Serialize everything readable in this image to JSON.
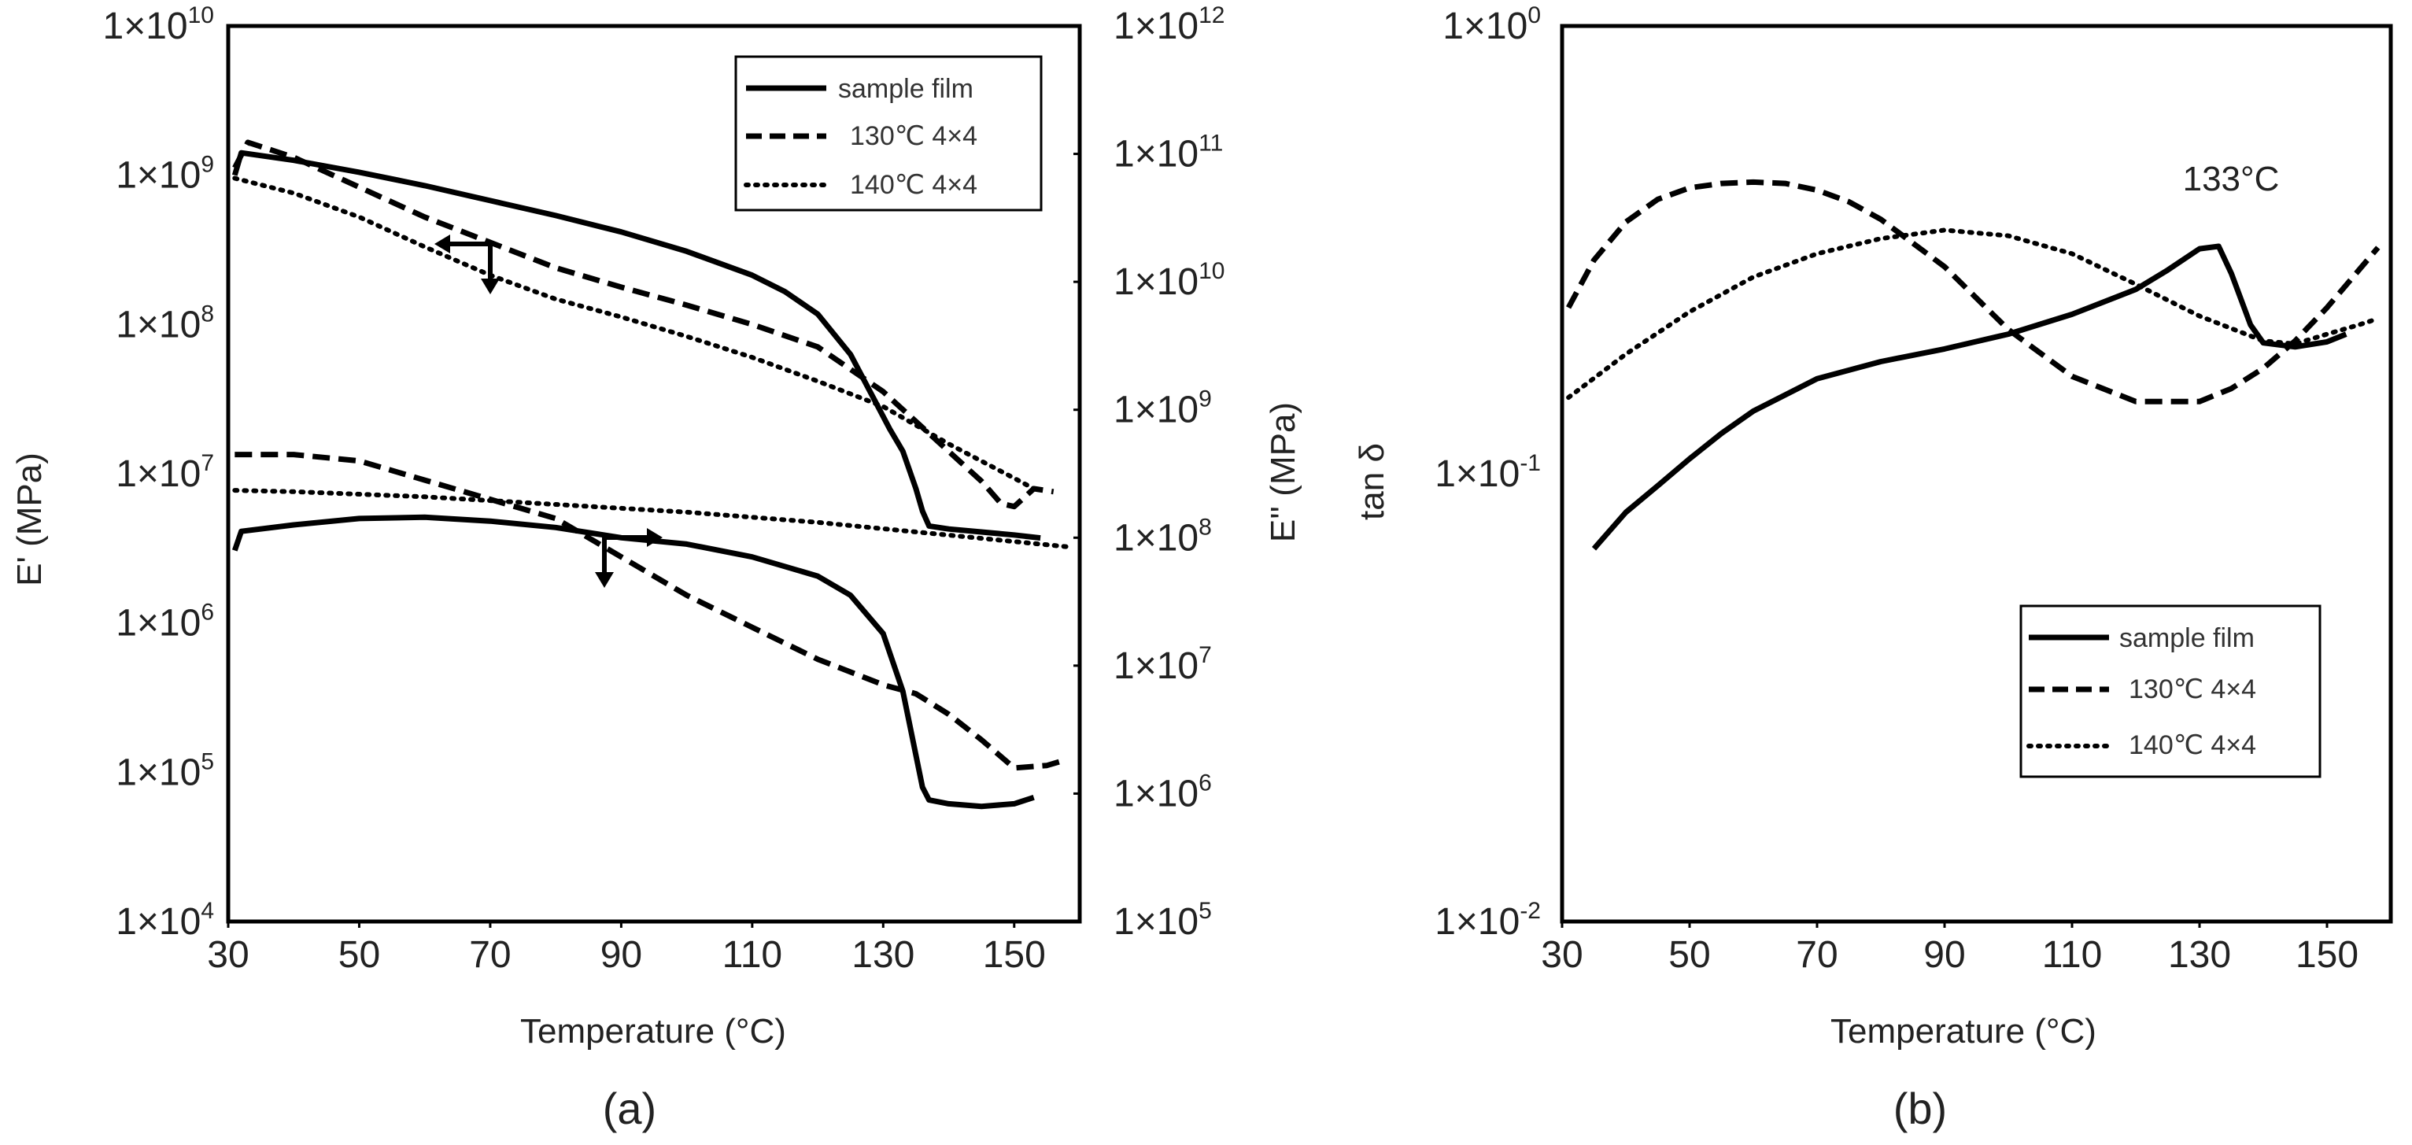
{
  "chart_data": [
    {
      "panel_label": "(a)",
      "type": "line",
      "xlabel": "Temperature (°C)",
      "ylabel_left": "E' (MPa)",
      "ylabel_right": "E'' (MPa)",
      "x_ticks": [
        30,
        50,
        70,
        90,
        110,
        130,
        150
      ],
      "xlim": [
        30,
        160
      ],
      "ylim_left_log10": [
        4,
        10
      ],
      "ylim_right_log10": [
        5,
        12
      ],
      "y_ticks_left": [
        {
          "base": "1×10",
          "exp": "10"
        },
        {
          "base": "1×10",
          "exp": "9"
        },
        {
          "base": "1×10",
          "exp": "8"
        },
        {
          "base": "1×10",
          "exp": "7"
        },
        {
          "base": "1×10",
          "exp": "6"
        },
        {
          "base": "1×10",
          "exp": "5"
        },
        {
          "base": "1×10",
          "exp": "4"
        }
      ],
      "y_ticks_right": [
        {
          "base": "1×10",
          "exp": "12"
        },
        {
          "base": "1×10",
          "exp": "11"
        },
        {
          "base": "1×10",
          "exp": "10"
        },
        {
          "base": "1×10",
          "exp": "9"
        },
        {
          "base": "1×10",
          "exp": "8"
        },
        {
          "base": "1×10",
          "exp": "7"
        },
        {
          "base": "1×10",
          "exp": "6"
        },
        {
          "base": "1×10",
          "exp": "5"
        }
      ],
      "legend": [
        "sample film",
        "130℃ 4×4",
        "140℃ 4×4"
      ],
      "series": [
        {
          "name": "sample film",
          "quantity": "E'",
          "axis": "left",
          "style": "solid",
          "x": [
            31,
            32,
            40,
            50,
            60,
            70,
            80,
            90,
            100,
            110,
            115,
            120,
            125,
            128,
            131,
            133,
            135,
            136,
            137,
            140,
            145,
            150,
            154
          ],
          "log10_y": [
            9.0,
            9.15,
            9.1,
            9.02,
            8.93,
            8.83,
            8.73,
            8.62,
            8.49,
            8.33,
            8.22,
            8.07,
            7.8,
            7.55,
            7.3,
            7.15,
            6.9,
            6.75,
            6.65,
            6.63,
            6.61,
            6.59,
            6.57
          ]
        },
        {
          "name": "130℃ 4×4",
          "quantity": "E'",
          "axis": "left",
          "style": "dashed",
          "x": [
            31,
            33,
            40,
            50,
            60,
            70,
            80,
            90,
            100,
            110,
            120,
            130,
            135,
            140,
            145,
            148,
            150,
            153,
            156
          ],
          "log10_y": [
            9.05,
            9.22,
            9.12,
            8.92,
            8.72,
            8.55,
            8.38,
            8.25,
            8.13,
            8.0,
            7.85,
            7.55,
            7.35,
            7.15,
            6.95,
            6.8,
            6.78,
            6.9,
            6.88
          ]
        },
        {
          "name": "140℃ 4×4",
          "quantity": "E'",
          "axis": "left",
          "style": "dotted",
          "x": [
            31,
            40,
            50,
            60,
            70,
            80,
            90,
            100,
            110,
            120,
            130,
            140,
            150,
            153
          ],
          "log10_y": [
            8.98,
            8.88,
            8.72,
            8.52,
            8.33,
            8.17,
            8.05,
            7.92,
            7.78,
            7.62,
            7.45,
            7.2,
            6.97,
            6.9
          ]
        },
        {
          "name": "sample film",
          "quantity": "E''",
          "axis": "right",
          "style": "solid",
          "x": [
            31,
            32,
            40,
            50,
            60,
            70,
            80,
            90,
            100,
            110,
            120,
            125,
            130,
            133,
            135,
            136,
            137,
            140,
            145,
            150,
            153
          ],
          "log10_y": [
            7.9,
            8.05,
            8.1,
            8.15,
            8.16,
            8.13,
            8.08,
            8.0,
            7.95,
            7.85,
            7.7,
            7.55,
            7.25,
            6.8,
            6.3,
            6.05,
            5.95,
            5.92,
            5.9,
            5.92,
            5.97
          ]
        },
        {
          "name": "130℃ 4×4",
          "quantity": "E''",
          "axis": "right",
          "style": "dashed",
          "x": [
            31,
            40,
            50,
            60,
            70,
            80,
            90,
            100,
            110,
            120,
            130,
            135,
            140,
            145,
            150,
            155,
            157
          ],
          "log10_y": [
            8.65,
            8.65,
            8.6,
            8.45,
            8.3,
            8.15,
            7.85,
            7.55,
            7.3,
            7.05,
            6.85,
            6.78,
            6.62,
            6.42,
            6.2,
            6.22,
            6.25
          ]
        },
        {
          "name": "140℃ 4×4",
          "quantity": "E''",
          "axis": "right",
          "style": "dotted",
          "x": [
            31,
            40,
            50,
            60,
            70,
            80,
            90,
            100,
            110,
            120,
            130,
            140,
            150,
            158
          ],
          "log10_y": [
            8.37,
            8.36,
            8.34,
            8.32,
            8.29,
            8.26,
            8.23,
            8.2,
            8.16,
            8.12,
            8.07,
            8.02,
            7.97,
            7.93
          ]
        }
      ]
    },
    {
      "panel_label": "(b)",
      "type": "line",
      "xlabel": "Temperature (°C)",
      "ylabel": "tan δ",
      "x_ticks": [
        30,
        50,
        70,
        90,
        110,
        130,
        150
      ],
      "xlim": [
        30,
        160
      ],
      "ylim_log10": [
        -2,
        0
      ],
      "y_ticks": [
        {
          "base": "1×10",
          "exp": "0"
        },
        {
          "base": "1×10",
          "exp": "-1"
        },
        {
          "base": "1×10",
          "exp": "-2"
        }
      ],
      "annotation": "133°C",
      "legend": [
        "sample film",
        "130℃ 4×4",
        "140℃ 4×4"
      ],
      "series": [
        {
          "name": "sample film",
          "style": "solid",
          "x": [
            35,
            40,
            45,
            50,
            55,
            60,
            70,
            80,
            90,
            100,
            110,
            120,
            125,
            130,
            133,
            135,
            138,
            140,
            145,
            150,
            153
          ],
          "y": [
            0.068,
            0.082,
            0.094,
            0.108,
            0.123,
            0.138,
            0.163,
            0.178,
            0.19,
            0.205,
            0.227,
            0.258,
            0.285,
            0.318,
            0.322,
            0.28,
            0.215,
            0.196,
            0.192,
            0.197,
            0.205
          ]
        },
        {
          "name": "130℃ 4×4",
          "style": "dashed",
          "x": [
            31,
            35,
            40,
            45,
            50,
            55,
            60,
            65,
            70,
            75,
            80,
            90,
            100,
            110,
            120,
            130,
            135,
            140,
            145,
            150,
            155,
            158
          ],
          "y": [
            0.235,
            0.3,
            0.365,
            0.41,
            0.435,
            0.445,
            0.448,
            0.445,
            0.43,
            0.405,
            0.37,
            0.29,
            0.21,
            0.165,
            0.145,
            0.145,
            0.155,
            0.172,
            0.198,
            0.235,
            0.285,
            0.32
          ]
        },
        {
          "name": "140℃ 4×4",
          "style": "dotted",
          "x": [
            31,
            40,
            50,
            60,
            70,
            80,
            90,
            100,
            110,
            120,
            130,
            140,
            145,
            150,
            155,
            158
          ],
          "y": [
            0.148,
            0.185,
            0.23,
            0.275,
            0.31,
            0.335,
            0.35,
            0.34,
            0.31,
            0.265,
            0.225,
            0.198,
            0.195,
            0.205,
            0.215,
            0.222
          ]
        }
      ]
    }
  ]
}
